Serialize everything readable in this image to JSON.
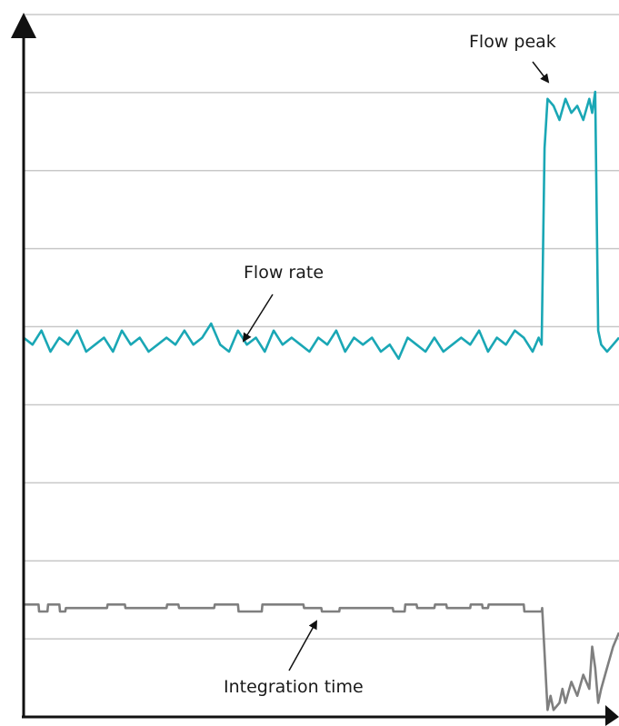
{
  "chart_data": {
    "type": "line",
    "title": "",
    "xlabel": "",
    "ylabel": "",
    "grid": true,
    "gridlines": 9,
    "legend": "none",
    "xlim": [
      0,
      100
    ],
    "ylim": [
      0,
      100
    ],
    "colors": {
      "flow_rate": "#1aa7b5",
      "integration_time": "#7f7f7f",
      "grid": "#c8c8c8",
      "axis": "#111111"
    },
    "series": [
      {
        "key": "flow_rate",
        "x": [
          0,
          1.5,
          3,
          4.5,
          6,
          7.5,
          9,
          10.5,
          12,
          13.5,
          15,
          16.5,
          18,
          19.5,
          21,
          22.5,
          24,
          25.5,
          27,
          28.5,
          30,
          31.5,
          33,
          34.5,
          36,
          37.5,
          39,
          40.5,
          42,
          43.5,
          45,
          46.5,
          48,
          49.5,
          51,
          52.5,
          54,
          55.5,
          57,
          58.5,
          60,
          61.5,
          63,
          64.5,
          66,
          67.5,
          69,
          70.5,
          72,
          73.5,
          75,
          76.5,
          78,
          79.5,
          81,
          82.5,
          84,
          85.5,
          86.5,
          87,
          87.5,
          88,
          89,
          90,
          91,
          92,
          93,
          94,
          95,
          95.5,
          96,
          96.5,
          97,
          98,
          99,
          100
        ],
        "y": [
          54,
          53,
          55,
          52,
          54,
          53,
          55,
          52,
          53,
          54,
          52,
          55,
          53,
          54,
          52,
          53,
          54,
          53,
          55,
          53,
          54,
          56,
          53,
          52,
          55,
          53,
          54,
          52,
          55,
          53,
          54,
          53,
          52,
          54,
          53,
          55,
          52,
          54,
          53,
          54,
          52,
          53,
          51,
          54,
          53,
          52,
          54,
          52,
          53,
          54,
          53,
          55,
          52,
          54,
          53,
          55,
          54,
          52,
          54,
          53,
          81,
          88,
          87,
          85,
          88,
          86,
          87,
          85,
          88,
          86,
          89,
          55,
          53,
          52,
          53,
          54
        ]
      },
      {
        "key": "integration_time",
        "x": [
          0,
          2.5,
          2.6,
          4,
          4.1,
          6,
          6.1,
          7,
          7.1,
          14,
          14.1,
          17,
          17.1,
          24,
          24.1,
          26,
          26.1,
          32,
          32.1,
          36,
          36.1,
          40,
          40.1,
          47,
          47.1,
          50,
          50.1,
          53,
          53.1,
          62,
          62.1,
          64,
          64.1,
          66,
          66.1,
          69,
          69.1,
          71,
          71.1,
          75,
          75.1,
          77,
          77.1,
          78,
          78.1,
          84,
          84.1,
          87,
          87.1,
          88,
          88.5,
          89,
          90,
          90.5,
          91,
          92,
          93,
          94,
          95,
          95.5,
          96,
          96.5,
          97,
          98,
          99,
          100
        ],
        "y": [
          16,
          16,
          15,
          15,
          16,
          16,
          15,
          15,
          15.5,
          15.5,
          16,
          16,
          15.5,
          15.5,
          16,
          16,
          15.5,
          15.5,
          16,
          16,
          15,
          15,
          16,
          16,
          15.5,
          15.5,
          15,
          15,
          15.5,
          15.5,
          15,
          15,
          16,
          16,
          15.5,
          15.5,
          16,
          16,
          15.5,
          15.5,
          16,
          16,
          15.5,
          15.5,
          16,
          16,
          15,
          15,
          15.5,
          1,
          3,
          1,
          2,
          4,
          2,
          5,
          3,
          6,
          4,
          10,
          7,
          2,
          4,
          7,
          10,
          12
        ]
      }
    ],
    "annotations": [
      {
        "key": "flow_peak",
        "text": "Flow peak"
      },
      {
        "key": "flow_rate",
        "text": "Flow rate"
      },
      {
        "key": "integration_time",
        "text": "Integration time"
      }
    ]
  }
}
